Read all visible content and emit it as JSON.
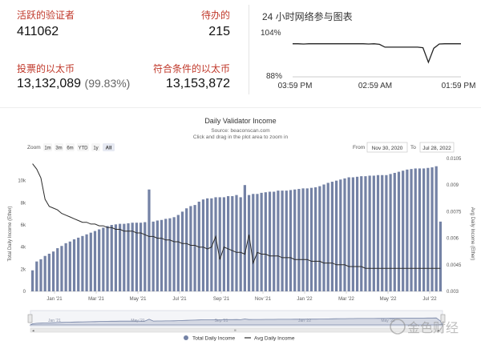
{
  "stats": {
    "active_label": "活跃的验证者",
    "active_value": "411062",
    "pending_label": "待办的",
    "pending_value": "215",
    "staked_label": "投票的以太币",
    "staked_value": "13,132,089",
    "staked_pct": "(99.83%)",
    "eligible_label": "符合条件的以太币",
    "eligible_value": "13,153,872"
  },
  "participation": {
    "title": "24 小时网络参与图表",
    "y_top_label": "104%",
    "y_bottom_label": "88%",
    "x_labels": [
      "03:59 PM",
      "02:59 AM",
      "01:59 PM"
    ],
    "ylim": [
      88,
      104
    ],
    "values": [
      99.8,
      99.8,
      99.7,
      99.8,
      99.8,
      99.8,
      99.8,
      99.8,
      99.8,
      99.8,
      99.8,
      99.8,
      99.8,
      99.8,
      99.7,
      99.8,
      99.6,
      98.6,
      98.6,
      98.6,
      98.6,
      98.6,
      98.6,
      98.6,
      98.4,
      93.2,
      98.2,
      99.7,
      99.8,
      99.8,
      99.8,
      99.8
    ]
  },
  "income_chart": {
    "title": "Daily Validator Income",
    "source": "Source: beaconscan.com",
    "hint": "Click and drag in the plot area to zoom in",
    "zoom_label": "Zoom",
    "zoom_options": [
      "1m",
      "3m",
      "6m",
      "YTD",
      "1y",
      "All"
    ],
    "zoom_selected": "All",
    "from_label": "From",
    "from_value": "Nov 30, 2020",
    "to_label": "To",
    "to_value": "Jul 28, 2022",
    "legend": [
      "Total Daily Income",
      "Avg Daily Income"
    ],
    "navigator_labels": [
      "Jan '21",
      "Mar '21",
      "May '21",
      "Jul '21",
      "Sep '21",
      "Nov '21",
      "Jan '22",
      "Mar '22",
      "May '22",
      "Jul '22"
    ],
    "watermark": "金色财经"
  },
  "chart_data": {
    "type": "bar",
    "title": "Daily Validator Income",
    "subtitle": "Source: beaconscan.com",
    "ylabel": "Total Daily Income (Ether)",
    "y2label": "Avg Daily Income (Ether)",
    "ylim": [
      0,
      12000
    ],
    "y2lim": [
      0.003,
      0.0105
    ],
    "yticks": [
      "0",
      "2k",
      "4k",
      "6k",
      "8k",
      "10k"
    ],
    "y2ticks": [
      "0.003",
      "0.0045",
      "0.006",
      "0.0075",
      "0.009",
      "0.0105"
    ],
    "xticks": [
      "Jan '21",
      "Mar '21",
      "May '21",
      "Jul '21",
      "Sep '21",
      "Nov '21",
      "Jan '22",
      "Mar '22",
      "May '22",
      "Jul '22"
    ],
    "series": [
      {
        "name": "Total Daily Income",
        "type": "bar",
        "values": [
          1900,
          2700,
          2900,
          3200,
          3400,
          3600,
          3900,
          4100,
          4350,
          4500,
          4700,
          4850,
          5000,
          5150,
          5300,
          5450,
          5600,
          5750,
          5900,
          6000,
          6050,
          6100,
          6100,
          6150,
          6200,
          6200,
          6200,
          6250,
          9200,
          6300,
          6400,
          6450,
          6550,
          6600,
          6700,
          6900,
          7200,
          7500,
          7700,
          7800,
          8100,
          8300,
          8400,
          8400,
          8500,
          8500,
          8500,
          8600,
          8600,
          8700,
          8500,
          9600,
          8700,
          8800,
          8800,
          8900,
          8950,
          9000,
          9000,
          9100,
          9100,
          9100,
          9150,
          9200,
          9250,
          9300,
          9300,
          9350,
          9400,
          9500,
          9650,
          9800,
          9900,
          10000,
          10100,
          10200,
          10300,
          10300,
          10350,
          10400,
          10400,
          10450,
          10450,
          10500,
          10500,
          10500,
          10600,
          10700,
          10800,
          10900,
          11000,
          11050,
          11100,
          11100,
          11100,
          11150,
          11200,
          11300,
          6300
        ]
      },
      {
        "name": "Avg Daily Income",
        "type": "line",
        "values": [
          0.0102,
          0.0099,
          0.0094,
          0.0082,
          0.0078,
          0.0077,
          0.0076,
          0.0074,
          0.0073,
          0.0072,
          0.0071,
          0.007,
          0.0069,
          0.0069,
          0.0068,
          0.0068,
          0.0067,
          0.0067,
          0.0066,
          0.0066,
          0.0065,
          0.0065,
          0.0064,
          0.0064,
          0.0064,
          0.0063,
          0.0063,
          0.0062,
          0.0061,
          0.0061,
          0.006,
          0.006,
          0.0059,
          0.0059,
          0.0058,
          0.0058,
          0.0057,
          0.0057,
          0.0056,
          0.0056,
          0.0055,
          0.0055,
          0.0054,
          0.0055,
          0.0061,
          0.0048,
          0.0055,
          0.0054,
          0.0053,
          0.0052,
          0.0052,
          0.0051,
          0.0062,
          0.0046,
          0.0052,
          0.0051,
          0.0051,
          0.005,
          0.005,
          0.005,
          0.0049,
          0.0049,
          0.0049,
          0.0048,
          0.0048,
          0.0048,
          0.0048,
          0.0047,
          0.0047,
          0.0047,
          0.0046,
          0.0046,
          0.0046,
          0.0045,
          0.0045,
          0.0045,
          0.0044,
          0.0044,
          0.0044,
          0.0044,
          0.0043,
          0.0043,
          0.0043,
          0.0043,
          0.0043,
          0.0043,
          0.0043,
          0.0043,
          0.0043,
          0.0043,
          0.0043,
          0.0043,
          0.0043,
          0.0043,
          0.0043,
          0.0043,
          0.0043,
          0.0043,
          0.0043
        ]
      }
    ],
    "legend_position": "bottom-center",
    "grid": false
  },
  "colors": {
    "bar": "#7482a5",
    "line": "#2b2b2b",
    "label_red": "#c0392b",
    "selected_zoom_bg": "#e6e9f2"
  }
}
